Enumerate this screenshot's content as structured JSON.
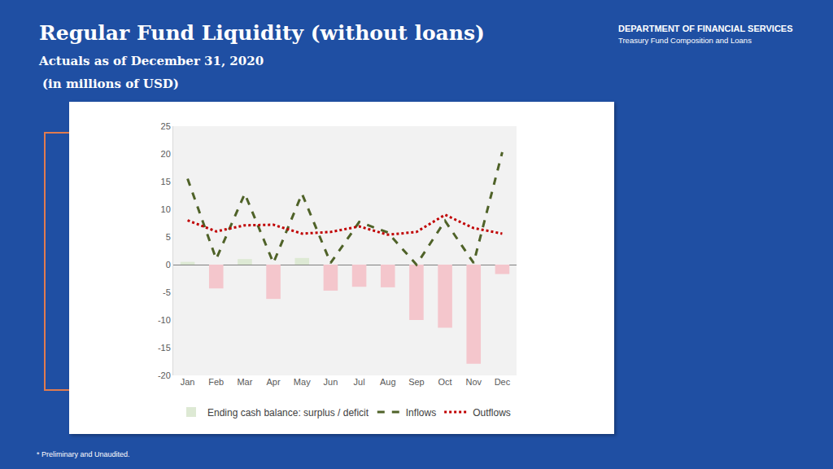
{
  "page": {
    "title": "Regular Fund Liquidity (without loans)",
    "subtitle": "Actuals as of December 31, 2020",
    "units": "(in millions of USD)",
    "department": "DEPARTMENT OF FINANCIAL SERVICES",
    "department_subtitle": "Treasury Fund Composition and Loans",
    "footnote": "* Preliminary and Unaudited."
  },
  "chart_data": {
    "type": "bar",
    "categories": [
      "Jan",
      "Feb",
      "Mar",
      "Apr",
      "May",
      "Jun",
      "Jul",
      "Aug",
      "Sep",
      "Oct",
      "Nov",
      "Dec"
    ],
    "series": [
      {
        "name": "Ending cash balance: surplus / deficit",
        "type": "bar",
        "colors": [
          "#dde9d4",
          "#f4c6cc",
          "#dde9d4",
          "#f4c6cc",
          "#dde9d4",
          "#f4c6cc",
          "#f4c6cc",
          "#f4c6cc",
          "#f4c6cc",
          "#f4c6cc",
          "#f4c6cc",
          "#f4c6cc"
        ],
        "values": [
          0.5,
          -4.3,
          1.0,
          -6.2,
          1.2,
          -4.7,
          -4.0,
          -4.1,
          -10.0,
          -11.4,
          -17.9,
          -1.7
        ]
      },
      {
        "name": "Inflows",
        "type": "line",
        "color": "#4f6228",
        "line_style": "dash",
        "values": [
          15.5,
          1.0,
          12.8,
          0.3,
          12.8,
          0.3,
          7.7,
          5.8,
          0.0,
          7.9,
          0.3,
          20.3
        ]
      },
      {
        "name": "Outflows",
        "type": "line",
        "color": "#c00000",
        "line_style": "dot",
        "values": [
          8.0,
          6.0,
          7.1,
          7.2,
          5.6,
          5.9,
          6.9,
          5.4,
          5.9,
          9.0,
          6.6,
          5.6
        ]
      }
    ],
    "ylim": [
      -20,
      25
    ],
    "yticks": [
      -20,
      -15,
      -10,
      -5,
      0,
      5,
      10,
      15,
      20,
      25
    ],
    "grid": false,
    "legend": "bottom"
  }
}
